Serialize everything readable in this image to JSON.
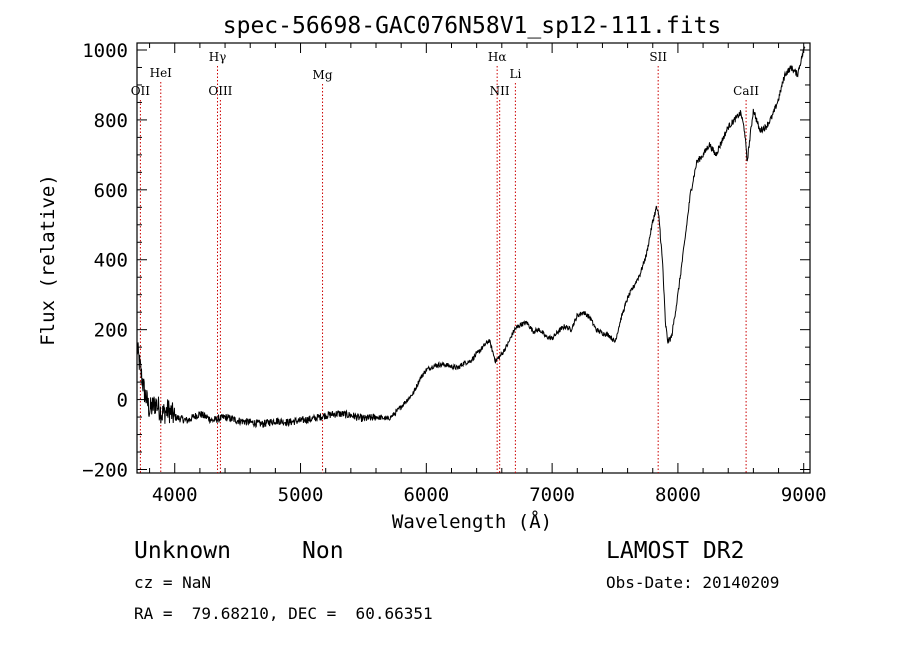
{
  "chart_data": {
    "type": "line",
    "title": "spec-56698-GAC076N58V1_sp12-111.fits",
    "xlabel": "Wavelength (Å)",
    "ylabel": "Flux (relative)",
    "xlim": [
      3700,
      9050
    ],
    "ylim": [
      -210,
      1020
    ],
    "xticks": [
      4000,
      5000,
      6000,
      7000,
      8000,
      9000
    ],
    "yticks": [
      -200,
      0,
      200,
      400,
      600,
      800,
      1000
    ],
    "x_tick_labels": [
      "4000",
      "5000",
      "6000",
      "7000",
      "8000",
      "9000"
    ],
    "y_tick_labels": [
      "−200",
      "0",
      "200",
      "400",
      "600",
      "800",
      "1000"
    ],
    "grid": false,
    "line_color": "#000000",
    "marker_color": "#cc0000",
    "line_markers": [
      {
        "label": "OII",
        "x": 3727
      },
      {
        "label": "HeI",
        "x": 3889
      },
      {
        "label": "Hγ",
        "x": 4340
      },
      {
        "label": "OIII",
        "x": 4363
      },
      {
        "label": "Mg",
        "x": 5175
      },
      {
        "label": "Hα",
        "x": 6563
      },
      {
        "label": "NII",
        "x": 6583
      },
      {
        "label": "Li",
        "x": 6708
      },
      {
        "label": "SII",
        "x": 7843
      },
      {
        "label": "CaII",
        "x": 8542
      }
    ],
    "series": [
      {
        "x": [
          3700,
          3730,
          3760,
          3800,
          3850,
          3900,
          3950,
          4000,
          4100,
          4200,
          4300,
          4400,
          4500,
          4600,
          4700,
          4800,
          4900,
          5000,
          5100,
          5200,
          5300,
          5400,
          5500,
          5600,
          5700,
          5750,
          5800,
          5850,
          5900,
          5950,
          6000,
          6050,
          6100,
          6150,
          6200,
          6250,
          6300,
          6350,
          6400,
          6450,
          6500,
          6550,
          6600,
          6650,
          6700,
          6750,
          6800,
          6850,
          6900,
          6950,
          7000,
          7050,
          7100,
          7150,
          7200,
          7250,
          7300,
          7350,
          7400,
          7450,
          7500,
          7550,
          7600,
          7650,
          7700,
          7750,
          7800,
          7830,
          7850,
          7880,
          7900,
          7920,
          7950,
          8000,
          8050,
          8100,
          8150,
          8200,
          8250,
          8300,
          8350,
          8400,
          8450,
          8500,
          8530,
          8550,
          8600,
          8650,
          8700,
          8750,
          8800,
          8850,
          8900,
          8950,
          9000,
          9010
        ],
        "y": [
          150,
          80,
          20,
          -30,
          -10,
          -40,
          -30,
          -50,
          -60,
          -40,
          -60,
          -50,
          -60,
          -65,
          -70,
          -60,
          -65,
          -60,
          -55,
          -45,
          -40,
          -45,
          -55,
          -50,
          -55,
          -40,
          -20,
          0,
          20,
          60,
          85,
          95,
          100,
          100,
          95,
          90,
          105,
          110,
          130,
          150,
          170,
          110,
          130,
          160,
          200,
          215,
          220,
          195,
          200,
          180,
          175,
          195,
          210,
          200,
          240,
          250,
          235,
          200,
          190,
          185,
          165,
          235,
          290,
          325,
          360,
          415,
          510,
          550,
          520,
          380,
          220,
          165,
          180,
          300,
          440,
          590,
          680,
          700,
          730,
          700,
          740,
          780,
          800,
          820,
          770,
          680,
          830,
          770,
          780,
          810,
          860,
          930,
          950,
          930,
          1000,
          1010
        ]
      }
    ]
  },
  "info": {
    "object_class": "Unknown",
    "object_subclass": "Non",
    "survey": "LAMOST DR2",
    "cz": "cz = NaN",
    "obs_date": "Obs-Date: 20140209",
    "coords": "RA =  79.68210, DEC =  60.66351"
  }
}
